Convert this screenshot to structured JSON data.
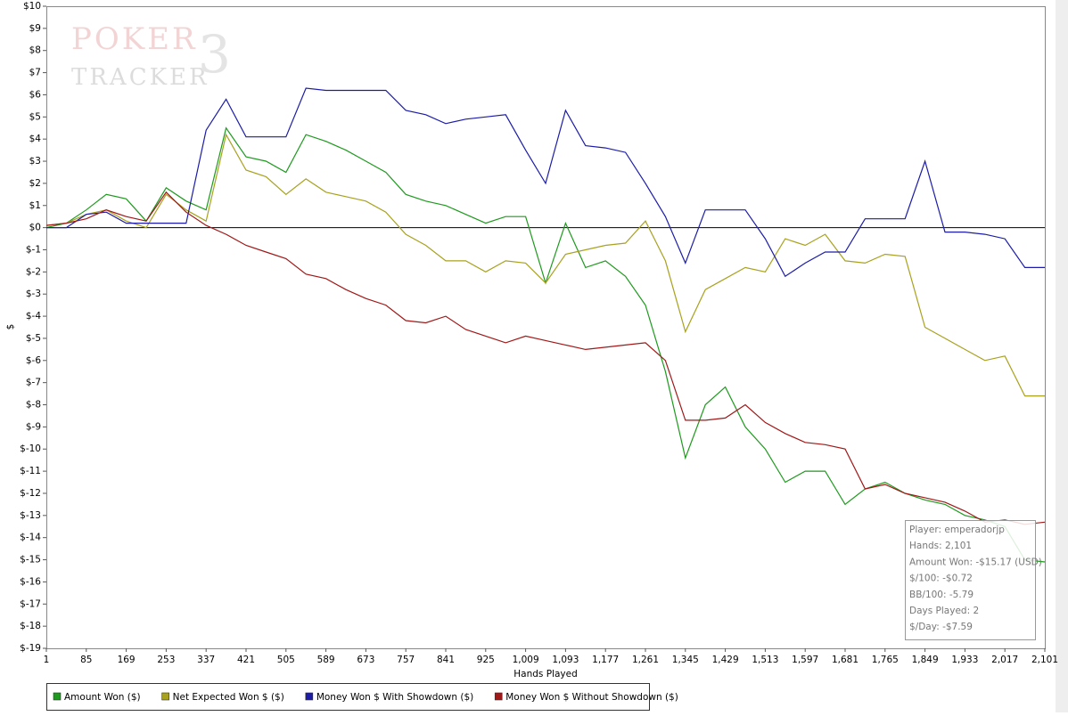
{
  "chart_data": {
    "type": "line",
    "watermark": {
      "word1": "POKER",
      "word2": "TRACKER",
      "version": "3"
    },
    "y_label": "$",
    "x_label": "Hands Played",
    "x": [
      1,
      43,
      85,
      127,
      169,
      211,
      253,
      295,
      337,
      379,
      421,
      463,
      505,
      547,
      589,
      631,
      673,
      715,
      757,
      799,
      841,
      883,
      925,
      967,
      1009,
      1051,
      1093,
      1135,
      1177,
      1219,
      1261,
      1303,
      1345,
      1387,
      1429,
      1471,
      1513,
      1555,
      1597,
      1639,
      1681,
      1723,
      1765,
      1807,
      1849,
      1891,
      1933,
      1975,
      2017,
      2059,
      2101
    ],
    "series": [
      {
        "name": "Amount Won ($)",
        "color": "#1e9a1e",
        "values": [
          0,
          0.2,
          0.8,
          1.5,
          1.3,
          0.3,
          1.8,
          1.2,
          0.8,
          4.5,
          3.2,
          3.0,
          2.5,
          4.2,
          3.9,
          3.5,
          3.0,
          2.5,
          1.5,
          1.2,
          1.0,
          0.6,
          0.2,
          0.5,
          0.5,
          -2.5,
          0.2,
          -1.8,
          -1.5,
          -2.2,
          -3.5,
          -6.5,
          -10.4,
          -8.0,
          -7.2,
          -9.0,
          -10.0,
          -11.5,
          -11.0,
          -11.0,
          -12.5,
          -11.8,
          -11.5,
          -12.0,
          -12.3,
          -12.5,
          -13.0,
          -13.2,
          -13.5,
          -15.0,
          -15.1
        ]
      },
      {
        "name": "Net Expected Won $ ($)",
        "color": "#a8a21e",
        "values": [
          0.1,
          0.2,
          0.6,
          0.8,
          0.3,
          0,
          1.5,
          0.8,
          0.3,
          4.2,
          2.6,
          2.3,
          1.5,
          2.2,
          1.6,
          1.4,
          1.2,
          0.7,
          -0.3,
          -0.8,
          -1.5,
          -1.5,
          -2.0,
          -1.5,
          -1.6,
          -2.5,
          -1.2,
          -1.0,
          -0.8,
          -0.7,
          0.3,
          -1.5,
          -4.7,
          -2.8,
          -2.3,
          -1.8,
          -2.0,
          -0.5,
          -0.8,
          -0.3,
          -1.5,
          -1.6,
          -1.2,
          -1.3,
          -4.5,
          -5.0,
          -5.5,
          -6.0,
          -5.8,
          -7.6,
          -7.6
        ]
      },
      {
        "name": "Money Won $ With Showdown ($)",
        "color": "#1c1ca8",
        "values": [
          0,
          0,
          0.6,
          0.7,
          0.2,
          0.2,
          0.2,
          0.2,
          4.4,
          5.8,
          4.1,
          4.1,
          4.1,
          6.3,
          6.2,
          6.2,
          6.2,
          6.2,
          5.3,
          5.1,
          4.7,
          4.9,
          5.0,
          5.1,
          3.5,
          2.0,
          5.3,
          3.7,
          3.6,
          3.4,
          2.0,
          0.5,
          -1.6,
          0.8,
          0.8,
          0.8,
          -0.5,
          -2.2,
          -1.6,
          -1.1,
          -1.1,
          0.4,
          0.4,
          0.4,
          3.0,
          -0.2,
          -0.2,
          -0.3,
          -0.5,
          -1.8,
          -1.8
        ]
      },
      {
        "name": "Money Won $ Without Showdown ($)",
        "color": "#a01818",
        "values": [
          0.1,
          0.2,
          0.4,
          0.8,
          0.5,
          0.3,
          1.6,
          0.7,
          0.1,
          -0.3,
          -0.8,
          -1.1,
          -1.4,
          -2.1,
          -2.3,
          -2.8,
          -3.2,
          -3.5,
          -4.2,
          -4.3,
          -4.0,
          -4.6,
          -4.9,
          -5.2,
          -4.9,
          -5.1,
          -5.3,
          -5.5,
          -5.4,
          -5.3,
          -5.2,
          -6.0,
          -8.7,
          -8.7,
          -8.6,
          -8.0,
          -8.8,
          -9.3,
          -9.7,
          -9.8,
          -10.0,
          -11.8,
          -11.6,
          -12.0,
          -12.2,
          -12.4,
          -12.8,
          -13.3,
          -13.2,
          -13.4,
          -13.3
        ]
      }
    ],
    "xlim": [
      1,
      2101
    ],
    "xticks": [
      1,
      85,
      169,
      253,
      337,
      421,
      505,
      589,
      673,
      757,
      841,
      925,
      {
        "value": 1009,
        "label": "1,009"
      },
      {
        "value": 1093,
        "label": "1,093"
      },
      {
        "value": 1177,
        "label": "1,177"
      },
      {
        "value": 1261,
        "label": "1,261"
      },
      {
        "value": 1345,
        "label": "1,345"
      },
      {
        "value": 1429,
        "label": "1,429"
      },
      {
        "value": 1513,
        "label": "1,513"
      },
      {
        "value": 1597,
        "label": "1,597"
      },
      {
        "value": 1681,
        "label": "1,681"
      },
      {
        "value": 1765,
        "label": "1,765"
      },
      {
        "value": 1849,
        "label": "1,849"
      },
      {
        "value": 1933,
        "label": "1,933"
      },
      {
        "value": 2017,
        "label": "2,017"
      },
      {
        "value": 2101,
        "label": "2,101"
      }
    ],
    "ylim": [
      -19,
      10
    ],
    "yticks": [
      {
        "value": 10,
        "label": "$10"
      },
      {
        "value": 9,
        "label": "$9"
      },
      {
        "value": 8,
        "label": "$8"
      },
      {
        "value": 7,
        "label": "$7"
      },
      {
        "value": 6,
        "label": "$6"
      },
      {
        "value": 5,
        "label": "$5"
      },
      {
        "value": 4,
        "label": "$4"
      },
      {
        "value": 3,
        "label": "$3"
      },
      {
        "value": 2,
        "label": "$2"
      },
      {
        "value": 1,
        "label": "$1"
      },
      {
        "value": 0,
        "label": "$0"
      },
      {
        "value": -1,
        "label": "$-1"
      },
      {
        "value": -2,
        "label": "$-2"
      },
      {
        "value": -3,
        "label": "$-3"
      },
      {
        "value": -4,
        "label": "$-4"
      },
      {
        "value": -5,
        "label": "$-5"
      },
      {
        "value": -6,
        "label": "$-6"
      },
      {
        "value": -7,
        "label": "$-7"
      },
      {
        "value": -8,
        "label": "$-8"
      },
      {
        "value": -9,
        "label": "$-9"
      },
      {
        "value": -10,
        "label": "$-10"
      },
      {
        "value": -11,
        "label": "$-11"
      },
      {
        "value": -12,
        "label": "$-12"
      },
      {
        "value": -13,
        "label": "$-13"
      },
      {
        "value": -14,
        "label": "$-14"
      },
      {
        "value": -15,
        "label": "$-15"
      },
      {
        "value": -16,
        "label": "$-16"
      },
      {
        "value": -17,
        "label": "$-17"
      },
      {
        "value": -18,
        "label": "$-18"
      },
      {
        "value": -19,
        "label": "$-19"
      }
    ],
    "grid": false,
    "zero_line": true,
    "stats": [
      "Player: emperadorjp",
      "Hands: 2,101",
      "Amount Won: -$15.17 (USD)",
      "$/100: -$0.72",
      "BB/100: -5.79",
      "Days Played: 2",
      "$/Day: -$7.59"
    ]
  }
}
